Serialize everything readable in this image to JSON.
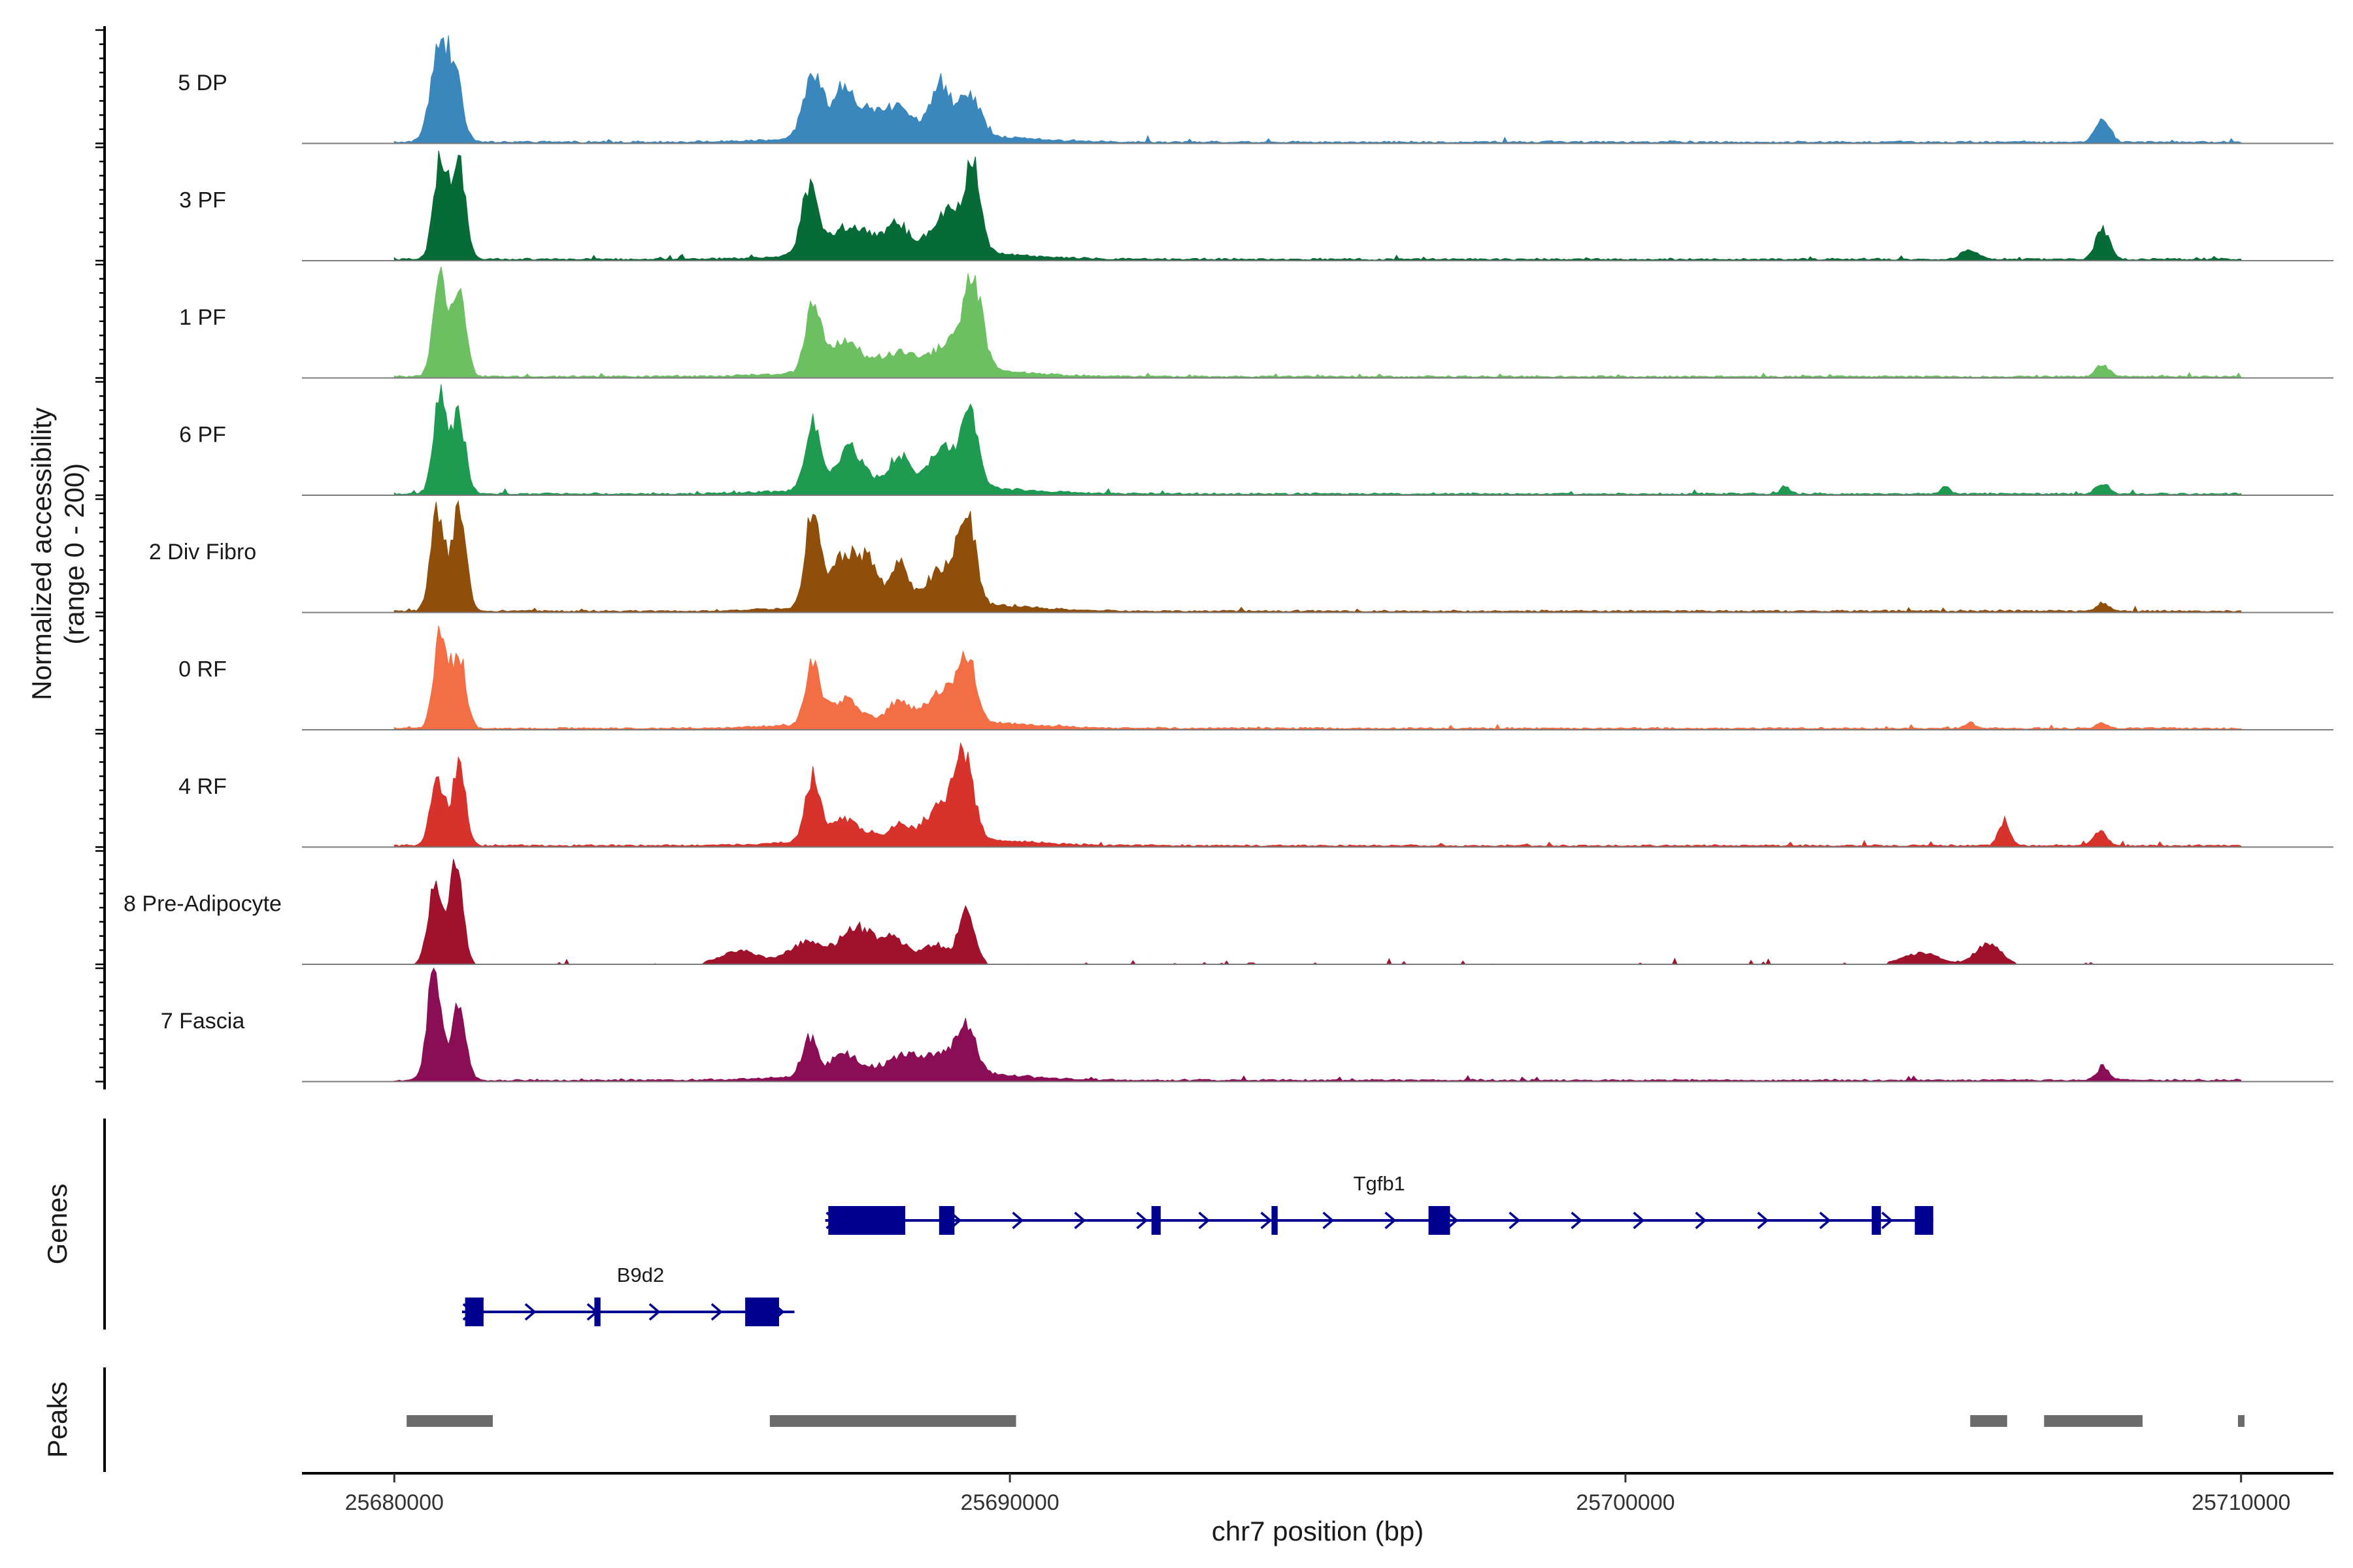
{
  "chart_data": {
    "type": "area",
    "title": "",
    "ylabel": [
      "Normalized accessibility",
      "(range 0 - 200)"
    ],
    "xlabel": "chr7 position (bp)",
    "xlim": [
      25678500,
      25711500
    ],
    "ylim": [
      0,
      200
    ],
    "xticks": [
      25680000,
      25690000,
      25700000,
      25710000
    ],
    "xtick_labels": [
      "25680000",
      "25690000",
      "25700000",
      "25710000"
    ],
    "signal_range": [
      25680000,
      25710000
    ],
    "tracks": [
      {
        "name": "5 DP",
        "color": "#3a87bd",
        "sparse": false,
        "peaks": [
          [
            25680750,
            150,
            170
          ],
          [
            25681000,
            120,
            90
          ],
          [
            25686800,
            150,
            110
          ],
          [
            25687300,
            180,
            80
          ],
          [
            25688000,
            400,
            50
          ],
          [
            25688900,
            150,
            85
          ],
          [
            25689350,
            160,
            75
          ],
          [
            25707750,
            110,
            45
          ],
          [
            25688400,
            1300,
            18
          ]
        ]
      },
      {
        "name": "3 PF",
        "color": "#066b36",
        "sparse": false,
        "peaks": [
          [
            25680750,
            110,
            180
          ],
          [
            25681050,
            110,
            175
          ],
          [
            25686750,
            130,
            120
          ],
          [
            25687400,
            400,
            45
          ],
          [
            25688200,
            160,
            40
          ],
          [
            25689000,
            250,
            75
          ],
          [
            25689400,
            130,
            135
          ],
          [
            25707750,
            110,
            55
          ],
          [
            25705600,
            150,
            15
          ],
          [
            25688400,
            1300,
            18
          ]
        ]
      },
      {
        "name": "1 PF",
        "color": "#6cc062",
        "sparse": false,
        "peaks": [
          [
            25680750,
            110,
            180
          ],
          [
            25681050,
            110,
            160
          ],
          [
            25686800,
            120,
            130
          ],
          [
            25687300,
            250,
            55
          ],
          [
            25688200,
            300,
            25
          ],
          [
            25689400,
            150,
            140
          ],
          [
            25689100,
            300,
            45
          ],
          [
            25707750,
            110,
            20
          ],
          [
            25688400,
            1300,
            18
          ]
        ]
      },
      {
        "name": "6 PF",
        "color": "#1e9a51",
        "sparse": false,
        "peaks": [
          [
            25680750,
            110,
            175
          ],
          [
            25681050,
            110,
            135
          ],
          [
            25686800,
            120,
            120
          ],
          [
            25687400,
            220,
            70
          ],
          [
            25688200,
            150,
            55
          ],
          [
            25688900,
            200,
            65
          ],
          [
            25689350,
            140,
            130
          ],
          [
            25702600,
            70,
            15
          ],
          [
            25705200,
            70,
            15
          ],
          [
            25707750,
            100,
            20
          ],
          [
            25688400,
            1300,
            18
          ]
        ]
      },
      {
        "name": "2 Div Fibro",
        "color": "#8f4e0a",
        "sparse": false,
        "peaks": [
          [
            25680700,
            110,
            180
          ],
          [
            25681050,
            110,
            190
          ],
          [
            25686800,
            120,
            175
          ],
          [
            25687300,
            200,
            90
          ],
          [
            25687700,
            160,
            70
          ],
          [
            25688200,
            130,
            80
          ],
          [
            25689300,
            140,
            160
          ],
          [
            25688900,
            250,
            60
          ],
          [
            25707750,
            100,
            15
          ],
          [
            25688400,
            1300,
            18
          ]
        ]
      },
      {
        "name": "0 RF",
        "color": "#f36e45",
        "sparse": false,
        "peaks": [
          [
            25680750,
            110,
            170
          ],
          [
            25681050,
            110,
            135
          ],
          [
            25686800,
            120,
            110
          ],
          [
            25687300,
            220,
            40
          ],
          [
            25688200,
            150,
            35
          ],
          [
            25689300,
            140,
            115
          ],
          [
            25688900,
            250,
            50
          ],
          [
            25705600,
            80,
            12
          ],
          [
            25707750,
            100,
            10
          ],
          [
            25688400,
            1300,
            18
          ]
        ]
      },
      {
        "name": "4 RF",
        "color": "#d7322b",
        "sparse": false,
        "peaks": [
          [
            25680700,
            110,
            120
          ],
          [
            25681050,
            110,
            140
          ],
          [
            25686800,
            120,
            115
          ],
          [
            25687300,
            220,
            35
          ],
          [
            25688200,
            130,
            25
          ],
          [
            25689250,
            150,
            145
          ],
          [
            25688900,
            250,
            55
          ],
          [
            25706150,
            90,
            45
          ],
          [
            25707700,
            110,
            25
          ],
          [
            25688400,
            1300,
            18
          ]
        ]
      },
      {
        "name": "8 Pre-Adipocyte",
        "color": "#a0112c",
        "sparse": true,
        "peaks": [
          [
            25680650,
            110,
            140
          ],
          [
            25681000,
            110,
            180
          ],
          [
            25686700,
            300,
            40
          ],
          [
            25687500,
            250,
            65
          ],
          [
            25688100,
            250,
            45
          ],
          [
            25689300,
            130,
            100
          ],
          [
            25688800,
            200,
            35
          ],
          [
            25685600,
            300,
            25
          ],
          [
            25705900,
            200,
            40
          ],
          [
            25704800,
            300,
            20
          ]
        ]
      },
      {
        "name": "7 Fascia",
        "color": "#8b0d55",
        "sparse": false,
        "peaks": [
          [
            25680650,
            110,
            200
          ],
          [
            25681050,
            110,
            140
          ],
          [
            25686750,
            120,
            70
          ],
          [
            25687300,
            200,
            35
          ],
          [
            25688300,
            300,
            25
          ],
          [
            25689300,
            150,
            80
          ],
          [
            25688900,
            250,
            30
          ],
          [
            25707750,
            100,
            25
          ],
          [
            25688400,
            1300,
            18
          ]
        ]
      }
    ],
    "genes_panel_label": "Genes",
    "peaks_panel_label": "Peaks",
    "gene_color": "#000090",
    "peak_color": "#6b6b6b",
    "genes": [
      {
        "name": "Tgfb1",
        "strand": "+",
        "row": 1,
        "start": 25687000,
        "end": 25705000,
        "exons": [
          [
            25687050,
            25688300
          ],
          [
            25688850,
            25689100
          ],
          [
            25692300,
            25692450
          ],
          [
            25694250,
            25694350
          ],
          [
            25696800,
            25697150
          ],
          [
            25704000,
            25704150
          ],
          [
            25704700,
            25705000
          ]
        ]
      },
      {
        "name": "B9d2",
        "strand": "+",
        "row": 2,
        "start": 25681100,
        "end": 25686500,
        "exons": [
          [
            25681150,
            25681450
          ],
          [
            25683250,
            25683350
          ],
          [
            25685700,
            25686250
          ]
        ]
      }
    ],
    "peak_regions": [
      [
        25680200,
        25681600
      ],
      [
        25686100,
        25690100
      ],
      [
        25705600,
        25706200
      ],
      [
        25706800,
        25708400
      ],
      [
        25709950,
        25710050
      ]
    ]
  }
}
